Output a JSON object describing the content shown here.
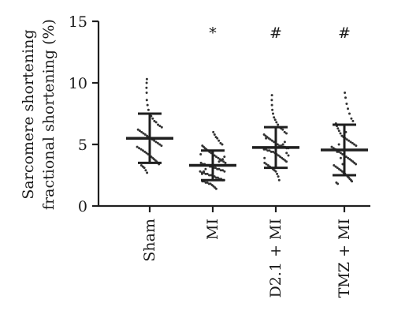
{
  "chart_data": {
    "type": "scatter",
    "subtype": "dot-plot-with-mean-and-sd",
    "ylabel_line1": "Sarcomere shortening",
    "ylabel_line2": "fractional shortening (%)",
    "ylim": [
      0,
      15
    ],
    "yticks": [
      0,
      5,
      10,
      15
    ],
    "ytick_labels": [
      "0",
      "5",
      "10",
      "15"
    ],
    "categories": [
      "Sham",
      "MI",
      "D2.1 + MI",
      "TMZ + MI"
    ],
    "markers": [
      "",
      "*",
      "#",
      "#"
    ],
    "means": [
      5.5,
      3.3,
      4.75,
      4.55
    ],
    "sd_upper": [
      7.5,
      4.5,
      6.4,
      6.6
    ],
    "sd_lower": [
      3.5,
      2.1,
      3.1,
      2.5
    ],
    "groups": [
      {
        "name": "Sham",
        "values": [
          10.3,
          10.0,
          9.6,
          9.2,
          8.6,
          8.2,
          7.8,
          7.5,
          7.3,
          7.1,
          6.9,
          6.8,
          6.6,
          6.5,
          6.4,
          6.2,
          6.1,
          6.0,
          5.9,
          5.8,
          5.7,
          5.6,
          5.5,
          5.4,
          5.3,
          5.2,
          5.1,
          5.0,
          4.9,
          4.8,
          4.7,
          4.6,
          4.5,
          4.4,
          4.3,
          4.2,
          4.1,
          4.0,
          3.9,
          3.8,
          3.7,
          3.6,
          3.5,
          3.4,
          3.3,
          3.2,
          3.1,
          2.9,
          2.7
        ]
      },
      {
        "name": "MI",
        "values": [
          6.0,
          5.8,
          5.6,
          5.5,
          5.3,
          5.1,
          5.0,
          4.9,
          4.8,
          4.7,
          4.6,
          4.5,
          4.4,
          4.3,
          4.2,
          4.1,
          4.0,
          3.9,
          3.8,
          3.7,
          3.6,
          3.5,
          3.5,
          3.4,
          3.4,
          3.3,
          3.3,
          3.2,
          3.2,
          3.1,
          3.1,
          3.0,
          3.0,
          2.9,
          2.9,
          2.8,
          2.8,
          2.7,
          2.7,
          2.6,
          2.6,
          2.5,
          2.5,
          2.4,
          2.4,
          2.3,
          2.3,
          2.2,
          2.2,
          2.1,
          2.1,
          2.0,
          2.0,
          1.9,
          1.9,
          1.8,
          1.8,
          1.7,
          1.6,
          1.5,
          1.4,
          3.6,
          3.7,
          3.8,
          4.0,
          4.2,
          2.6,
          2.8,
          3.0
        ]
      },
      {
        "name": "D2.1 + MI",
        "values": [
          9.0,
          8.6,
          8.2,
          7.8,
          7.5,
          7.2,
          7.0,
          6.8,
          6.6,
          6.4,
          6.3,
          6.2,
          6.0,
          5.9,
          5.8,
          5.7,
          5.6,
          5.5,
          5.4,
          5.3,
          5.2,
          5.1,
          5.0,
          4.9,
          4.9,
          4.8,
          4.8,
          4.7,
          4.7,
          4.6,
          4.6,
          4.5,
          4.5,
          4.4,
          4.4,
          4.3,
          4.2,
          4.1,
          4.0,
          3.9,
          3.8,
          3.7,
          3.6,
          3.5,
          3.4,
          3.3,
          3.2,
          3.1,
          3.0,
          2.9,
          2.8,
          2.6,
          2.4,
          2.1,
          5.0,
          5.2,
          4.3,
          4.1,
          3.9,
          5.5
        ]
      },
      {
        "name": "TMZ + MI",
        "values": [
          9.2,
          8.8,
          8.3,
          7.9,
          7.5,
          7.1,
          6.9,
          6.7,
          6.5,
          6.3,
          6.1,
          5.9,
          5.7,
          5.6,
          5.5,
          5.4,
          5.3,
          5.2,
          5.1,
          5.0,
          4.9,
          4.8,
          4.7,
          4.6,
          4.5,
          4.4,
          4.3,
          4.2,
          4.1,
          4.0,
          3.9,
          3.8,
          3.7,
          3.6,
          3.5,
          3.4,
          3.3,
          3.2,
          3.1,
          3.0,
          2.9,
          2.8,
          2.7,
          2.6,
          2.5,
          2.4,
          2.3,
          2.2,
          2.1,
          2.0,
          1.9,
          1.8,
          4.6,
          4.4,
          5.0,
          3.9,
          3.4,
          2.9,
          6.0
        ]
      }
    ],
    "grid": false,
    "legend": "none"
  }
}
